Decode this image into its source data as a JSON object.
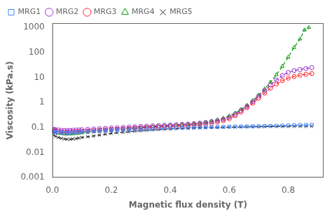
{
  "chart_data": {
    "type": "line",
    "xlabel": "Magnetic flux density (T)",
    "ylabel": "Viscosity (kPa.s)",
    "log": "y",
    "grid": false,
    "legend": "upper left",
    "xlim": [
      0,
      0.92
    ],
    "ylim": [
      0.001,
      1500
    ],
    "xticks": [
      {
        "value": 0,
        "label": "0.0"
      },
      0.2,
      0.4,
      0.6,
      0.8
    ],
    "yticks": [
      0.001,
      0.01,
      0.1,
      1,
      10,
      100,
      1000
    ],
    "series": [
      {
        "name": "MRG1",
        "color": "#4488FF",
        "marker": "square",
        "line_style": "dashed",
        "x": [
          0.005,
          0.01,
          0.02,
          0.03,
          0.04,
          0.05,
          0.06,
          0.07,
          0.08,
          0.09,
          0.1,
          0.12,
          0.14,
          0.16,
          0.18,
          0.2,
          0.22,
          0.24,
          0.26,
          0.28,
          0.3,
          0.32,
          0.34,
          0.36,
          0.38,
          0.4,
          0.42,
          0.44,
          0.46,
          0.48,
          0.5,
          0.52,
          0.54,
          0.56,
          0.58,
          0.6,
          0.62,
          0.64,
          0.66,
          0.68,
          0.7,
          0.72,
          0.74,
          0.76,
          0.78,
          0.8,
          0.82,
          0.84,
          0.86,
          0.88
        ],
        "values": [
          0.068,
          0.065,
          0.063,
          0.062,
          0.061,
          0.06,
          0.061,
          0.063,
          0.064,
          0.065,
          0.066,
          0.068,
          0.07,
          0.072,
          0.073,
          0.075,
          0.077,
          0.079,
          0.081,
          0.082,
          0.084,
          0.086,
          0.088,
          0.09,
          0.092,
          0.094,
          0.096,
          0.098,
          0.099,
          0.1,
          0.102,
          0.104,
          0.105,
          0.106,
          0.107,
          0.109,
          0.11,
          0.111,
          0.112,
          0.113,
          0.114,
          0.116,
          0.117,
          0.119,
          0.12,
          0.122,
          0.124,
          0.126,
          0.128,
          0.13
        ]
      },
      {
        "name": "MRG2",
        "color": "#9933CC",
        "marker": "circle",
        "line_style": "dashed",
        "x": [
          0.005,
          0.01,
          0.02,
          0.03,
          0.04,
          0.05,
          0.06,
          0.07,
          0.08,
          0.09,
          0.1,
          0.12,
          0.14,
          0.16,
          0.18,
          0.2,
          0.22,
          0.24,
          0.26,
          0.28,
          0.3,
          0.32,
          0.34,
          0.36,
          0.38,
          0.4,
          0.42,
          0.44,
          0.46,
          0.48,
          0.5,
          0.52,
          0.54,
          0.56,
          0.58,
          0.6,
          0.62,
          0.64,
          0.66,
          0.68,
          0.7,
          0.72,
          0.74,
          0.76,
          0.78,
          0.8,
          0.82,
          0.84,
          0.86,
          0.88
        ],
        "values": [
          0.085,
          0.082,
          0.08,
          0.078,
          0.077,
          0.076,
          0.077,
          0.078,
          0.079,
          0.08,
          0.082,
          0.085,
          0.088,
          0.09,
          0.093,
          0.096,
          0.099,
          0.102,
          0.105,
          0.108,
          0.111,
          0.114,
          0.117,
          0.12,
          0.123,
          0.126,
          0.13,
          0.134,
          0.138,
          0.143,
          0.15,
          0.16,
          0.172,
          0.19,
          0.215,
          0.26,
          0.34,
          0.48,
          0.7,
          1.1,
          1.8,
          3.0,
          5.0,
          8.0,
          12.0,
          16.0,
          19.0,
          21.0,
          23.0,
          25.0
        ]
      },
      {
        "name": "MRG3",
        "color": "#FF2222",
        "marker": "circle",
        "line_style": "dashed",
        "x": [
          0.005,
          0.01,
          0.02,
          0.03,
          0.04,
          0.05,
          0.06,
          0.07,
          0.08,
          0.09,
          0.1,
          0.12,
          0.14,
          0.16,
          0.18,
          0.2,
          0.22,
          0.24,
          0.26,
          0.28,
          0.3,
          0.32,
          0.34,
          0.36,
          0.38,
          0.4,
          0.42,
          0.44,
          0.46,
          0.48,
          0.5,
          0.52,
          0.54,
          0.56,
          0.58,
          0.6,
          0.62,
          0.64,
          0.66,
          0.68,
          0.7,
          0.72,
          0.74,
          0.76,
          0.78,
          0.8,
          0.82,
          0.84,
          0.86,
          0.88
        ],
        "values": [
          0.075,
          0.072,
          0.069,
          0.067,
          0.066,
          0.065,
          0.066,
          0.067,
          0.068,
          0.069,
          0.07,
          0.073,
          0.076,
          0.078,
          0.081,
          0.084,
          0.086,
          0.089,
          0.091,
          0.094,
          0.096,
          0.099,
          0.101,
          0.104,
          0.107,
          0.11,
          0.113,
          0.116,
          0.12,
          0.124,
          0.13,
          0.138,
          0.148,
          0.165,
          0.188,
          0.225,
          0.3,
          0.42,
          0.62,
          0.95,
          1.5,
          2.4,
          3.8,
          5.5,
          7.5,
          9.5,
          11.0,
          12.5,
          13.5,
          14.5
        ]
      },
      {
        "name": "MRG4",
        "color": "#009900",
        "marker": "triangle",
        "line_style": "dashed",
        "x": [
          0.005,
          0.01,
          0.02,
          0.03,
          0.04,
          0.05,
          0.06,
          0.07,
          0.08,
          0.09,
          0.1,
          0.12,
          0.14,
          0.16,
          0.18,
          0.2,
          0.22,
          0.24,
          0.26,
          0.28,
          0.3,
          0.32,
          0.34,
          0.36,
          0.38,
          0.4,
          0.42,
          0.44,
          0.46,
          0.48,
          0.5,
          0.52,
          0.54,
          0.56,
          0.58,
          0.6,
          0.62,
          0.64,
          0.66,
          0.68,
          0.7,
          0.72,
          0.74,
          0.76,
          0.78,
          0.8,
          0.82,
          0.84,
          0.855,
          0.87
        ],
        "values": [
          0.068,
          0.064,
          0.06,
          0.058,
          0.056,
          0.055,
          0.056,
          0.057,
          0.058,
          0.06,
          0.062,
          0.065,
          0.068,
          0.072,
          0.076,
          0.08,
          0.084,
          0.088,
          0.092,
          0.096,
          0.1,
          0.104,
          0.108,
          0.112,
          0.116,
          0.12,
          0.125,
          0.13,
          0.136,
          0.143,
          0.152,
          0.165,
          0.182,
          0.205,
          0.238,
          0.29,
          0.38,
          0.53,
          0.78,
          1.2,
          2.0,
          3.5,
          6.5,
          13.0,
          28.0,
          65.0,
          160.0,
          350.0,
          800.0,
          1000.0
        ]
      },
      {
        "name": "MRG5",
        "color": "#222222",
        "marker": "x",
        "line_style": "dashed",
        "x": [
          0.005,
          0.01,
          0.02,
          0.03,
          0.04,
          0.05,
          0.06,
          0.07,
          0.08,
          0.09,
          0.1,
          0.12,
          0.14,
          0.16,
          0.18,
          0.2,
          0.22,
          0.24,
          0.26,
          0.28,
          0.3,
          0.32,
          0.34,
          0.36,
          0.38,
          0.4,
          0.42,
          0.44,
          0.46,
          0.48,
          0.5,
          0.52,
          0.54,
          0.56,
          0.58,
          0.6,
          0.62,
          0.64,
          0.66,
          0.68,
          0.7,
          0.72,
          0.74,
          0.76,
          0.78,
          0.8,
          0.82,
          0.84,
          0.86,
          0.88
        ],
        "values": [
          0.05,
          0.045,
          0.04,
          0.037,
          0.035,
          0.034,
          0.034,
          0.035,
          0.036,
          0.038,
          0.04,
          0.043,
          0.046,
          0.05,
          0.054,
          0.058,
          0.062,
          0.065,
          0.068,
          0.071,
          0.074,
          0.077,
          0.08,
          0.083,
          0.086,
          0.088,
          0.09,
          0.092,
          0.094,
          0.096,
          0.098,
          0.099,
          0.1,
          0.101,
          0.102,
          0.103,
          0.104,
          0.105,
          0.106,
          0.107,
          0.108,
          0.109,
          0.11,
          0.11,
          0.111,
          0.111,
          0.112,
          0.112,
          0.112,
          0.113
        ]
      }
    ]
  }
}
